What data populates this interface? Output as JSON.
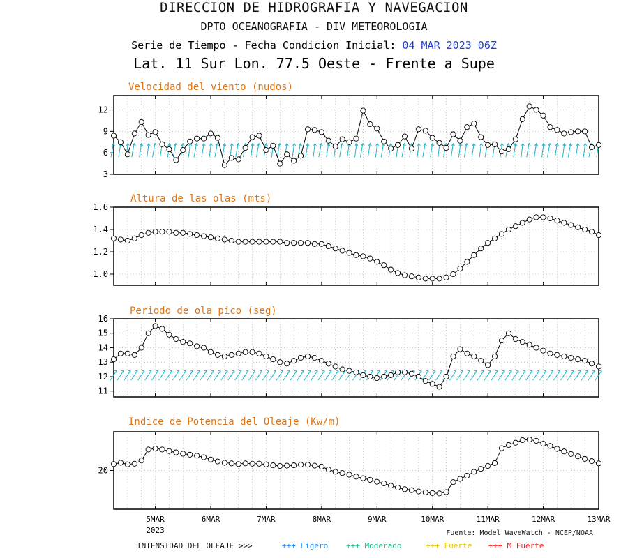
{
  "header": {
    "line1": "DIRECCION DE HIDROGRAFIA Y NAVEGACION",
    "line2": "DPTO OCEANOGRAFIA - DIV METEOROLOGIA",
    "line3_prefix": "Serie de Tiempo - Fecha Condicion Inicial:",
    "line3_date": "04 MAR 2023 06Z",
    "line4": "Lat. 11 Sur  Lon. 77.5 Oeste - Frente a Supe"
  },
  "footer": {
    "source": "Fuente: Model WaveWatch - NCEP/NOAA",
    "year": "2023",
    "legend_label": "INTENSIDAD DEL OLEAJE >>>",
    "legend_items": [
      {
        "text": "+++ Ligero",
        "color": "#1e90ff"
      },
      {
        "text": "+++ Moderado",
        "color": "#1fbf80"
      },
      {
        "text": "+++ Fuerte",
        "color": "#e6c800"
      },
      {
        "text": "+++ M Fuerte",
        "color": "#ff2020"
      }
    ]
  },
  "colors": {
    "title": "#e07410",
    "arrows": "#19b3c8",
    "line": "#000000"
  },
  "chart_data": [
    {
      "type": "line",
      "title": "Velocidad del viento (nudos)",
      "x_ticks": [
        "5MAR",
        "6MAR",
        "7MAR",
        "8MAR",
        "9MAR",
        "10MAR",
        "11MAR",
        "12MAR",
        "13MAR"
      ],
      "x_range_days": [
        4.25,
        13.0
      ],
      "ylim": [
        3,
        14
      ],
      "yticks": [
        3,
        6,
        9,
        12
      ],
      "grid": true,
      "direction_arrows": "wind",
      "values": [
        8.4,
        7.5,
        5.8,
        8.7,
        10.3,
        8.5,
        8.9,
        7.2,
        6.5,
        5.0,
        6.4,
        7.6,
        8.0,
        8.0,
        8.7,
        8.1,
        4.3,
        5.3,
        5.1,
        6.7,
        8.2,
        8.4,
        6.4,
        7.0,
        4.5,
        5.8,
        4.9,
        5.6,
        9.3,
        9.2,
        8.9,
        7.7,
        6.9,
        7.9,
        7.5,
        8.0,
        11.9,
        10.0,
        9.4,
        7.6,
        6.6,
        7.1,
        8.3,
        6.6,
        9.3,
        9.1,
        8.1,
        7.4,
        6.7,
        8.6,
        7.7,
        9.6,
        10.1,
        8.2,
        7.1,
        7.2,
        6.2,
        6.5,
        7.9,
        10.7,
        12.5,
        12.0,
        11.2,
        9.6,
        9.2,
        8.7,
        8.9,
        9.0,
        9.0,
        6.8,
        7.1
      ]
    },
    {
      "type": "line",
      "title": "Altura de las olas (mts)",
      "x_ticks": [
        "5MAR",
        "6MAR",
        "7MAR",
        "8MAR",
        "9MAR",
        "10MAR",
        "11MAR",
        "12MAR",
        "13MAR"
      ],
      "x_range_days": [
        4.25,
        13.0
      ],
      "ylim": [
        0.9,
        1.6
      ],
      "yticks": [
        "1.0",
        "1.2",
        "1.4",
        "1.6"
      ],
      "grid": true,
      "values": [
        1.32,
        1.31,
        1.3,
        1.32,
        1.35,
        1.37,
        1.38,
        1.38,
        1.38,
        1.37,
        1.37,
        1.36,
        1.35,
        1.34,
        1.33,
        1.32,
        1.31,
        1.3,
        1.29,
        1.29,
        1.29,
        1.29,
        1.29,
        1.29,
        1.29,
        1.28,
        1.28,
        1.28,
        1.28,
        1.27,
        1.27,
        1.25,
        1.23,
        1.21,
        1.19,
        1.17,
        1.16,
        1.14,
        1.11,
        1.08,
        1.04,
        1.01,
        0.99,
        0.98,
        0.97,
        0.96,
        0.96,
        0.96,
        0.97,
        1.0,
        1.05,
        1.11,
        1.17,
        1.23,
        1.28,
        1.32,
        1.36,
        1.4,
        1.43,
        1.46,
        1.49,
        1.51,
        1.51,
        1.5,
        1.48,
        1.46,
        1.44,
        1.42,
        1.4,
        1.38,
        1.35
      ]
    },
    {
      "type": "line",
      "title": "Periodo de ola pico (seg)",
      "x_ticks": [
        "5MAR",
        "6MAR",
        "7MAR",
        "8MAR",
        "9MAR",
        "10MAR",
        "11MAR",
        "12MAR",
        "13MAR"
      ],
      "x_range_days": [
        4.25,
        13.0
      ],
      "ylim": [
        10.6,
        16.0
      ],
      "yticks": [
        11,
        12,
        13,
        14,
        15,
        16
      ],
      "grid": true,
      "direction_arrows": "wave",
      "values": [
        13.2,
        13.6,
        13.6,
        13.5,
        14.0,
        15.0,
        15.5,
        15.3,
        14.9,
        14.6,
        14.4,
        14.3,
        14.1,
        14.0,
        13.7,
        13.5,
        13.4,
        13.5,
        13.6,
        13.7,
        13.7,
        13.6,
        13.4,
        13.2,
        13.0,
        12.9,
        13.1,
        13.3,
        13.4,
        13.3,
        13.1,
        12.9,
        12.7,
        12.5,
        12.4,
        12.3,
        12.1,
        12.0,
        11.9,
        12.0,
        12.1,
        12.3,
        12.3,
        12.2,
        12.0,
        11.7,
        11.5,
        11.3,
        12.0,
        13.4,
        13.9,
        13.6,
        13.4,
        13.1,
        12.8,
        13.4,
        14.5,
        15.0,
        14.6,
        14.4,
        14.2,
        14.0,
        13.8,
        13.6,
        13.5,
        13.4,
        13.3,
        13.2,
        13.1,
        12.9,
        12.7
      ]
    },
    {
      "type": "line",
      "title": "Indice de Potencia del Oleaje (Kw/m)",
      "x_ticks": [
        "5MAR",
        "6MAR",
        "7MAR",
        "8MAR",
        "9MAR",
        "10MAR",
        "11MAR",
        "12MAR",
        "13MAR"
      ],
      "x_range_days": [
        4.25,
        13.0
      ],
      "ylim": [
        8,
        32
      ],
      "yticks": [
        20
      ],
      "grid": true,
      "values": [
        22.0,
        22.4,
        21.9,
        22.1,
        23.1,
        26.5,
        26.8,
        26.5,
        26.0,
        25.6,
        25.2,
        24.9,
        24.6,
        24.1,
        23.4,
        22.8,
        22.4,
        22.2,
        22.0,
        22.2,
        22.1,
        22.1,
        21.9,
        21.6,
        21.4,
        21.5,
        21.6,
        21.8,
        21.8,
        21.5,
        21.2,
        20.3,
        19.6,
        19.2,
        18.7,
        18.1,
        17.6,
        17.1,
        16.5,
        16.0,
        15.3,
        14.7,
        14.2,
        13.9,
        13.5,
        13.2,
        13.0,
        12.9,
        13.3,
        16.4,
        17.4,
        18.4,
        19.6,
        20.5,
        21.4,
        22.3,
        26.9,
        27.9,
        28.6,
        29.4,
        29.6,
        29.2,
        28.3,
        27.6,
        26.7,
        25.9,
        25.1,
        24.4,
        23.6,
        22.9,
        22.2
      ]
    }
  ]
}
